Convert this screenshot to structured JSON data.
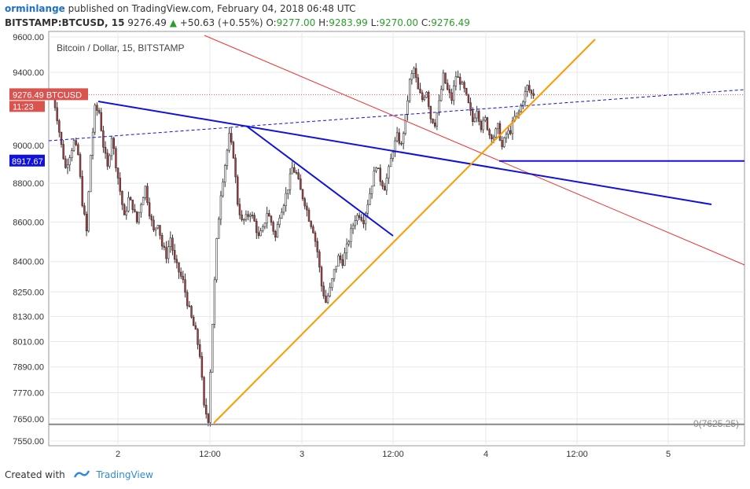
{
  "header": {
    "publisher": "orminlange",
    "published_text": "published on TradingView.com, February 04, 2018 06:48 UTC",
    "symbol": "BITSTAMP:BTCUSD, 15",
    "price": "9276.49",
    "change_arrow": "▲",
    "change": "+50.63 (+0.55%)",
    "o_label": "O:",
    "o_value": "9277.00",
    "h_label": "H:",
    "h_value": "9283.99",
    "l_label": "L:",
    "l_value": "9270.00",
    "c_label": "C:",
    "c_value": "9276.49"
  },
  "footer": {
    "created_with": "Created with",
    "brand": "TradingView"
  },
  "colors": {
    "up": "#ffffff",
    "down": "#b23a3a",
    "wick": "#333333",
    "blue": "#1111dd",
    "orange": "#ff9900",
    "red_line": "#ee3333",
    "price_badge": "#d9534f",
    "blue_badge": "#1111dd"
  },
  "chart_data": {
    "type": "candlestick",
    "title": "Bitcoin / Dollar, 15, BITSTAMP",
    "y_ticks": [
      9600,
      9400,
      9200,
      9000,
      8800,
      8600,
      8400,
      8250,
      8130,
      8010,
      7890,
      7770,
      7650,
      7550
    ],
    "y_tick_labels": [
      "9600.00",
      "9400.00",
      "9200.00",
      "9000.00",
      "8800.00",
      "8600.00",
      "8400.00",
      "8250.00",
      "8130.00",
      "8010.00",
      "7890.00",
      "7770.00",
      "7650.00",
      "7550.00"
    ],
    "x_tick_labels": [
      "2",
      "12:00",
      "3",
      "12:00",
      "4",
      "12:00",
      "5"
    ],
    "log_scale": true,
    "last_price_label": "9276.49",
    "last_price_symbol": "BTCUSD",
    "countdown": "11:23",
    "last_price": 9276.49,
    "support_label": "8917.67",
    "support_price": 8917.67,
    "fib_label": "0(7625.25)",
    "fib_price": 7625.25,
    "grid": true,
    "price_path": [
      9280,
      9150,
      9000,
      8880,
      8950,
      9020,
      8950,
      8700,
      8550,
      8950,
      9200,
      9180,
      9000,
      8880,
      9050,
      8900,
      8760,
      8620,
      8720,
      8680,
      8600,
      8700,
      8780,
      8650,
      8550,
      8600,
      8480,
      8430,
      8520,
      8400,
      8350,
      8300,
      8200,
      8120,
      8050,
      7950,
      7700,
      7650,
      8100,
      8500,
      8750,
      8900,
      9050,
      8950,
      8700,
      8600,
      8620,
      8650,
      8600,
      8520,
      8560,
      8650,
      8600,
      8520,
      8640,
      8700,
      8780,
      8880,
      8850,
      8760,
      8700,
      8620,
      8560,
      8450,
      8280,
      8200,
      8260,
      8350,
      8420,
      8400,
      8470,
      8550,
      8620,
      8640,
      8610,
      8700,
      8800,
      8900,
      8820,
      8780,
      8870,
      8980,
      9050,
      9000,
      9150,
      9350,
      9420,
      9300,
      9250,
      9300,
      9150,
      9120,
      9230,
      9380,
      9300,
      9250,
      9380,
      9350,
      9300,
      9220,
      9130,
      9200,
      9100,
      9140,
      9060,
      9050,
      9100,
      8990,
      9060,
      9080,
      9150,
      9180,
      9250,
      9320,
      9280
    ]
  }
}
